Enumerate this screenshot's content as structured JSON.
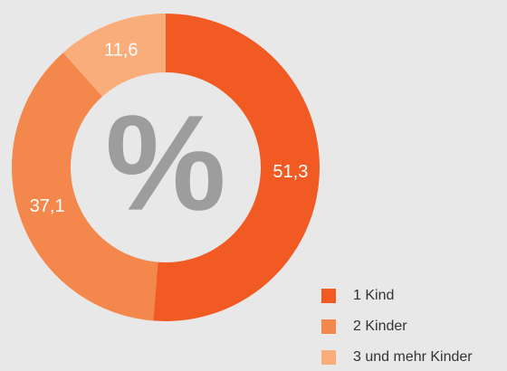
{
  "chart_data": {
    "type": "donut",
    "center_label": "%",
    "categories": [
      "1 Kind",
      "2 Kinder",
      "3 und mehr Kinder"
    ],
    "values": [
      51.3,
      37.1,
      11.6
    ],
    "value_labels": [
      "51,3",
      "37,1",
      "11,6"
    ],
    "colors": [
      "#f15a22",
      "#f4874b",
      "#f9ad7a"
    ],
    "legend": "bottom-right"
  }
}
